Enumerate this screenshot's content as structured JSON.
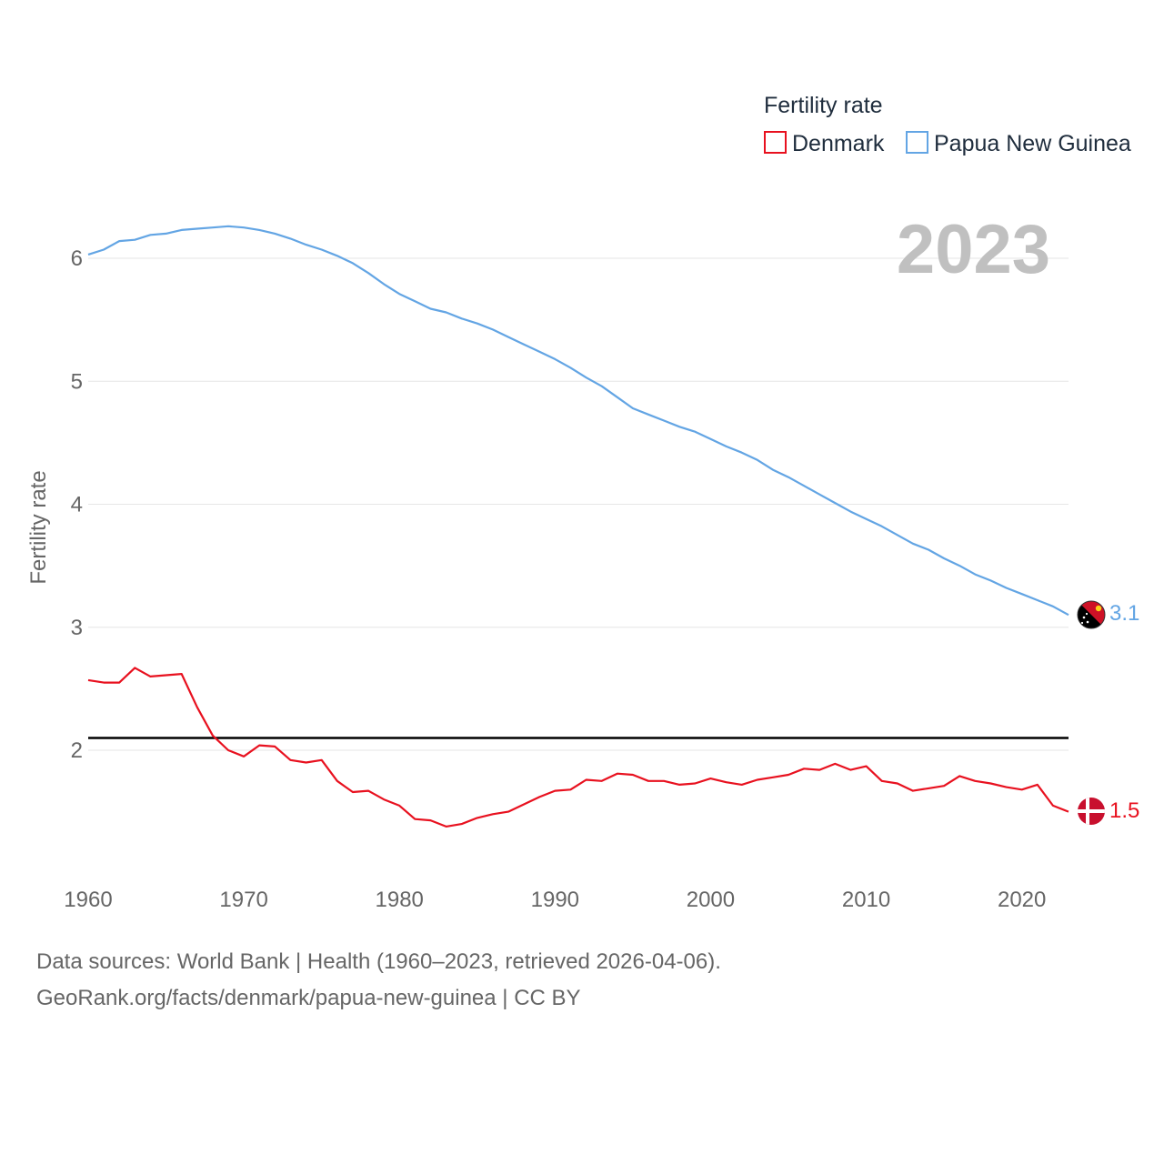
{
  "chart_data": {
    "type": "line",
    "legend_title": "Fertility rate",
    "ylabel": "Fertility rate",
    "year_label": "2023",
    "xlim": [
      1960,
      2023
    ],
    "ylim": [
      1.0,
      6.8
    ],
    "x_ticks": [
      1960,
      1970,
      1980,
      1990,
      2000,
      2010,
      2020
    ],
    "y_ticks": [
      2,
      3,
      4,
      5,
      6
    ],
    "reference_line": 2.1,
    "x": [
      1960,
      1961,
      1962,
      1963,
      1964,
      1965,
      1966,
      1967,
      1968,
      1969,
      1970,
      1971,
      1972,
      1973,
      1974,
      1975,
      1976,
      1977,
      1978,
      1979,
      1980,
      1981,
      1982,
      1983,
      1984,
      1985,
      1986,
      1987,
      1988,
      1989,
      1990,
      1991,
      1992,
      1993,
      1994,
      1995,
      1996,
      1997,
      1998,
      1999,
      2000,
      2001,
      2002,
      2003,
      2004,
      2005,
      2006,
      2007,
      2008,
      2009,
      2010,
      2011,
      2012,
      2013,
      2014,
      2015,
      2016,
      2017,
      2018,
      2019,
      2020,
      2021,
      2022,
      2023
    ],
    "series": [
      {
        "name": "Denmark",
        "color": "#e8111f",
        "end_label": "1.5",
        "values": [
          2.57,
          2.55,
          2.55,
          2.67,
          2.6,
          2.61,
          2.62,
          2.35,
          2.12,
          2.0,
          1.95,
          2.04,
          2.03,
          1.92,
          1.9,
          1.92,
          1.75,
          1.66,
          1.67,
          1.6,
          1.55,
          1.44,
          1.43,
          1.38,
          1.4,
          1.45,
          1.48,
          1.5,
          1.56,
          1.62,
          1.67,
          1.68,
          1.76,
          1.75,
          1.81,
          1.8,
          1.75,
          1.75,
          1.72,
          1.73,
          1.77,
          1.74,
          1.72,
          1.76,
          1.78,
          1.8,
          1.85,
          1.84,
          1.89,
          1.84,
          1.87,
          1.75,
          1.73,
          1.67,
          1.69,
          1.71,
          1.79,
          1.75,
          1.73,
          1.7,
          1.68,
          1.72,
          1.55,
          1.5
        ]
      },
      {
        "name": "Papua New Guinea",
        "color": "#63a5e4",
        "end_label": "3.1",
        "values": [
          6.03,
          6.07,
          6.14,
          6.15,
          6.19,
          6.2,
          6.23,
          6.24,
          6.25,
          6.26,
          6.25,
          6.23,
          6.2,
          6.16,
          6.11,
          6.07,
          6.02,
          5.96,
          5.88,
          5.79,
          5.71,
          5.65,
          5.59,
          5.56,
          5.51,
          5.47,
          5.42,
          5.36,
          5.3,
          5.24,
          5.18,
          5.11,
          5.03,
          4.96,
          4.87,
          4.78,
          4.73,
          4.68,
          4.63,
          4.59,
          4.53,
          4.47,
          4.42,
          4.36,
          4.28,
          4.22,
          4.15,
          4.08,
          4.01,
          3.94,
          3.88,
          3.82,
          3.75,
          3.68,
          3.63,
          3.56,
          3.5,
          3.43,
          3.38,
          3.32,
          3.27,
          3.22,
          3.17,
          3.1
        ]
      }
    ]
  },
  "source": {
    "line1": "Data sources: World Bank | Health (1960–2023, retrieved 2026-04-06).",
    "line2": "GeoRank.org/facts/denmark/papua-new-guinea | CC BY"
  }
}
